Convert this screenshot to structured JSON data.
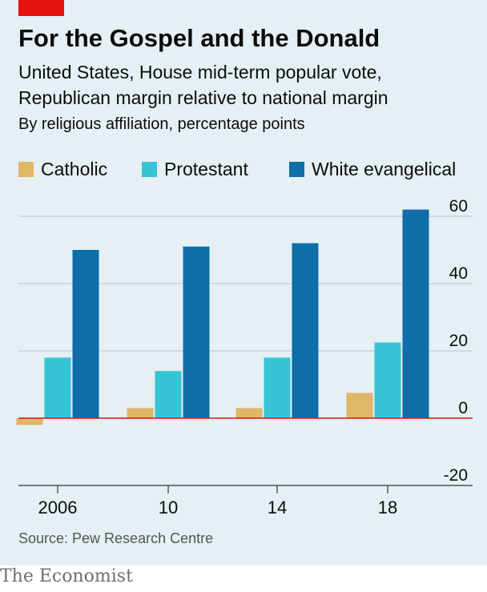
{
  "header": {
    "title": "For the Gospel and the Donald",
    "subtitle_line1": "United States, House mid-term popular vote,",
    "subtitle_line2": "Republican margin relative to national margin",
    "unit": "By religious affiliation, percentage points"
  },
  "colors": {
    "accent": "#e3120b",
    "panel": "#e5eff4",
    "catholic": "#e0b667",
    "protestant": "#36c4d6",
    "evangelical": "#0e6ea8",
    "zero_line": "#e3120b",
    "grid": "#b7c6cf"
  },
  "chart_data": {
    "type": "bar",
    "categories": [
      "2006",
      "10",
      "14",
      "18"
    ],
    "series": [
      {
        "name": "Catholic",
        "values": [
          -2,
          3,
          3,
          7.5
        ]
      },
      {
        "name": "Protestant",
        "values": [
          18,
          14,
          18,
          22.5
        ]
      },
      {
        "name": "White evangelical",
        "values": [
          50,
          51,
          52,
          62
        ]
      }
    ],
    "ylim": [
      -20,
      60
    ],
    "yticks": [
      60,
      40,
      20,
      0,
      -20
    ],
    "grid": true,
    "legend_position": "top-left"
  },
  "footer": {
    "source": "Source: Pew Research Centre",
    "brand": "The Economist"
  }
}
